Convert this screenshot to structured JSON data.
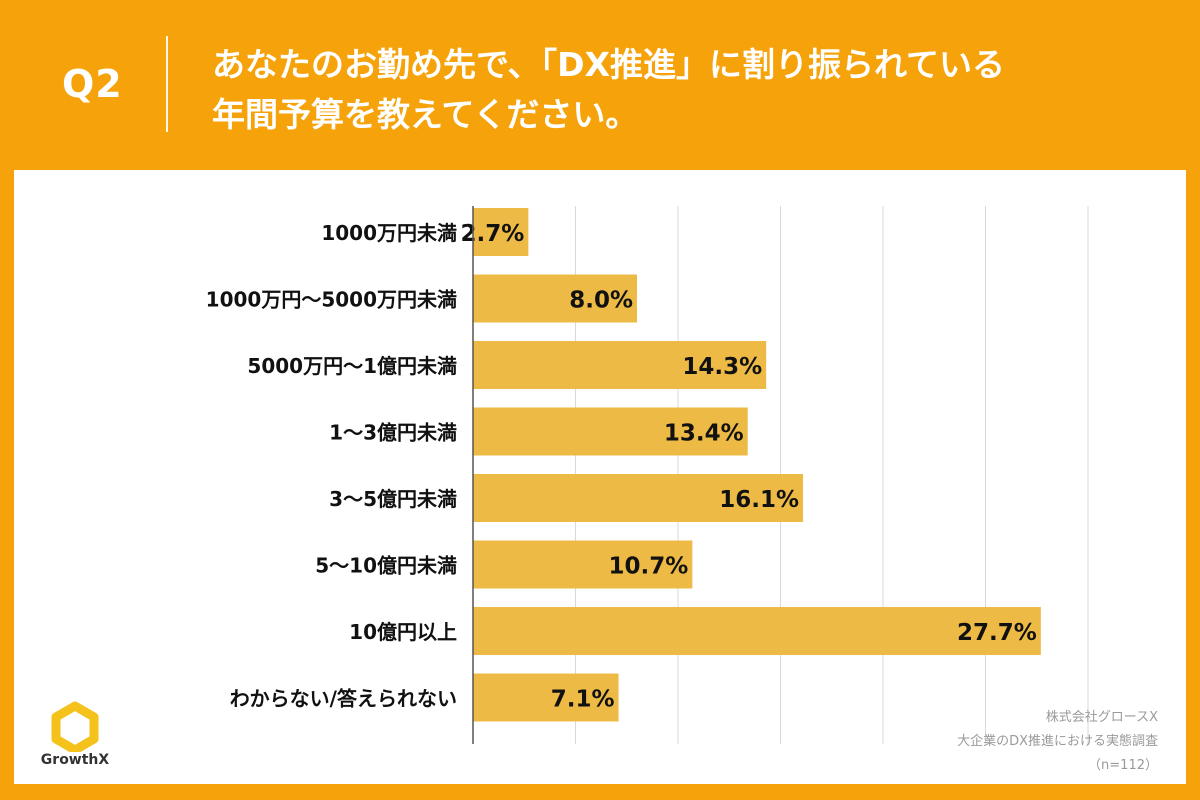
{
  "header": {
    "question_number": "Q2",
    "question_line1": "あなたのお勤め先で、「DX推進」に割り振られている",
    "question_line2": "年間予算を教えてください。"
  },
  "colors": {
    "background": "#F6A20A",
    "bar": "#EDBB45",
    "grid": "#d8d8d8",
    "text": "#111111"
  },
  "chart_data": {
    "type": "bar",
    "orientation": "horizontal",
    "categories": [
      "1000万円未満",
      "1000万円〜5000万円未満",
      "5000万円〜1億円未満",
      "1〜3億円未満",
      "3〜5億円未満",
      "5〜10億円未満",
      "10億円以上",
      "わからない/答えられない"
    ],
    "values": [
      2.7,
      8.0,
      14.3,
      13.4,
      16.1,
      10.7,
      27.7,
      7.1
    ],
    "value_labels": [
      "2.7%",
      "8.0%",
      "14.3%",
      "13.4%",
      "16.1%",
      "10.7%",
      "27.7%",
      "7.1%"
    ],
    "xlim": [
      0,
      30
    ],
    "grid": true,
    "title": "",
    "xlabel": "",
    "ylabel": ""
  },
  "logo": {
    "name": "GrowthX-logo",
    "text": "GrowthX"
  },
  "source": {
    "company": "株式会社グロースX",
    "survey": "大企業のDX推進における実態調査",
    "sample": "（n=112）"
  }
}
